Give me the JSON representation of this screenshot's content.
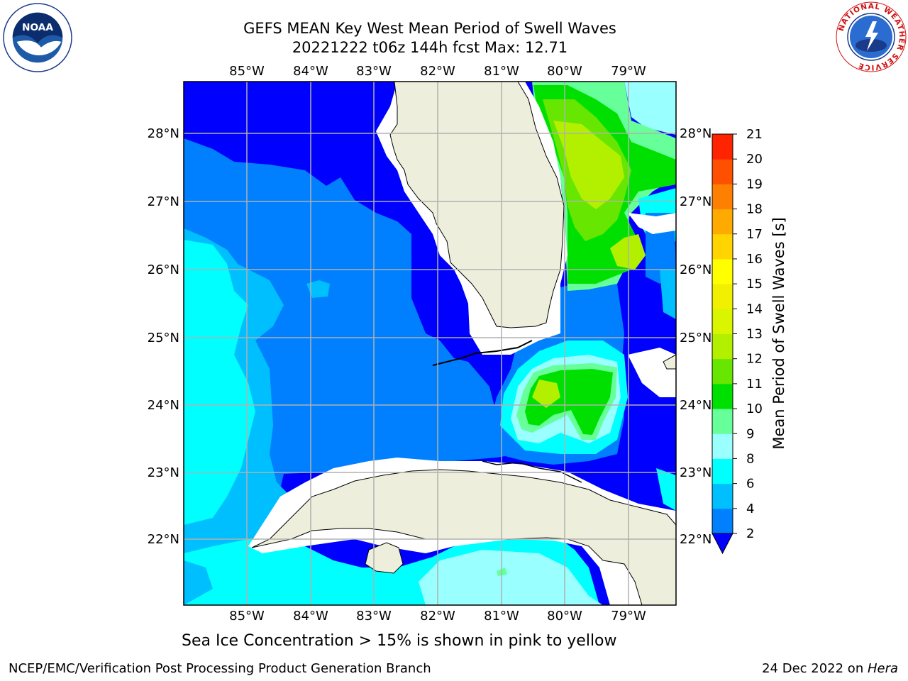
{
  "title": {
    "line1": "GEFS MEAN Key West Mean Period of Swell Waves",
    "line2": "20221222 t06z 144h fcst   Max: 12.71"
  },
  "logos": {
    "noaa": "NOAA",
    "nws_ring": "NATIONAL WEATHER SERVICE"
  },
  "map": {
    "lon_ticks": [
      "85°W",
      "84°W",
      "83°W",
      "82°W",
      "81°W",
      "80°W",
      "79°W"
    ],
    "lat_ticks": [
      "28°N",
      "27°N",
      "26°N",
      "25°N",
      "24°N",
      "23°N",
      "22°N"
    ],
    "land_color": "#eeeedc",
    "grid_color": "#b0b0b0"
  },
  "colorbar": {
    "label": "Mean Period of Swell Waves [s]",
    "ticks": [
      "2",
      "4",
      "6",
      "8",
      "9",
      "10",
      "11",
      "12",
      "13",
      "14",
      "15",
      "16",
      "17",
      "18",
      "19",
      "20",
      "21"
    ],
    "colors": [
      "#0080ff",
      "#00bfff",
      "#00ffff",
      "#99ffff",
      "#66ff99",
      "#00e000",
      "#66e600",
      "#b3f000",
      "#d9f500",
      "#f0f000",
      "#ffff00",
      "#ffd400",
      "#ffaa00",
      "#ff8000",
      "#ff5000",
      "#ff2400"
    ],
    "under_color": "#0000ff"
  },
  "subnote": "Sea Ice Concentration > 15% is shown in pink to yellow",
  "footer": {
    "left": "NCEP/EMC/Verification Post Processing Product Generation Branch",
    "right_prefix": "24 Dec 2022 on ",
    "right_host": "Hera"
  }
}
